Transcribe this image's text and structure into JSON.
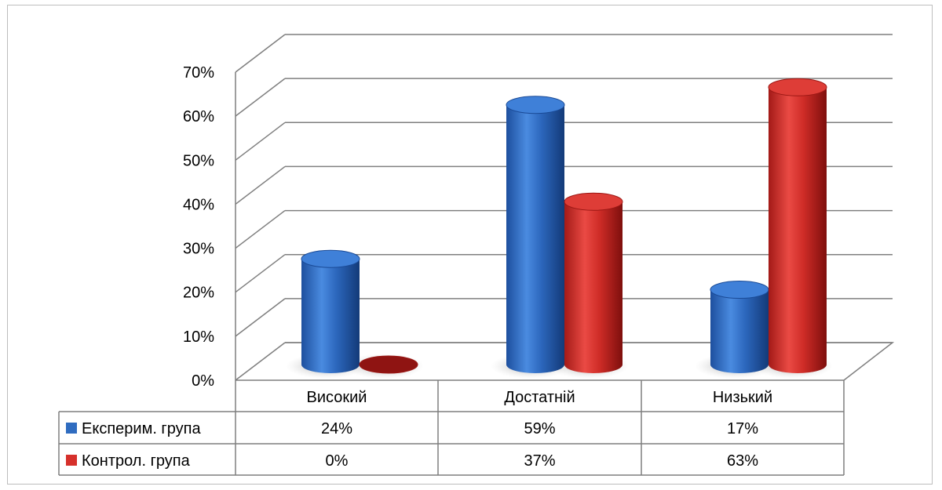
{
  "chart_data": {
    "type": "bar",
    "style": "3d-cylinder",
    "categories": [
      "Високий",
      "Достатній",
      "Низький"
    ],
    "series": [
      {
        "name": "Експерим. група",
        "values": [
          24,
          59,
          17
        ],
        "labels": [
          "24%",
          "59%",
          "17%"
        ],
        "color": "#2f6cc0"
      },
      {
        "name": "Контрол. група",
        "values": [
          0,
          37,
          63
        ],
        "labels": [
          "0%",
          "37%",
          "63%"
        ],
        "color": "#d6302b"
      }
    ],
    "ylim": [
      0,
      70
    ],
    "yticks": [
      0,
      10,
      20,
      30,
      40,
      50,
      60,
      70
    ],
    "ytick_labels": [
      "0%",
      "10%",
      "20%",
      "30%",
      "40%",
      "50%",
      "60%",
      "70%"
    ],
    "grid": true,
    "legend": "data-table"
  }
}
